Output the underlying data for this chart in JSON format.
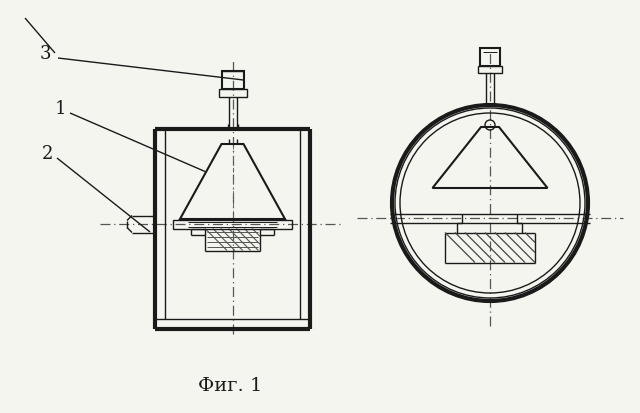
{
  "title": "Фиг. 1",
  "background_color": "#f5f5f0",
  "line_color": "#1a1a1a",
  "label1": "1",
  "label2": "2",
  "label3": "3",
  "figsize": [
    6.4,
    4.14
  ],
  "dpi": 100
}
